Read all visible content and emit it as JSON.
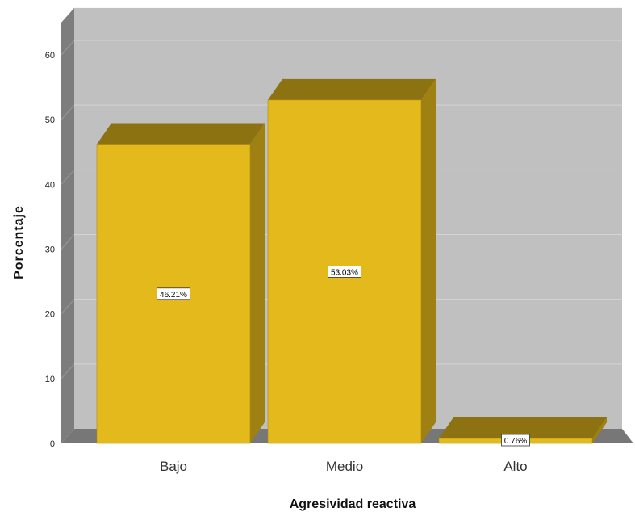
{
  "chart_data": {
    "type": "bar",
    "title": "",
    "xlabel": "Agresividad reactiva",
    "ylabel": "Porcentaje",
    "categories": [
      "Bajo",
      "Medio",
      "Alto"
    ],
    "values": [
      46.21,
      53.03,
      0.76
    ],
    "data_labels": [
      "46.21%",
      "53.03%",
      "0.76%"
    ],
    "yticks": [
      0,
      10,
      20,
      30,
      40,
      50,
      60
    ],
    "ylim": [
      0,
      65
    ],
    "grid": true,
    "legend": "none",
    "colors": {
      "bar_front": "#e3b91c",
      "bar_top": "#8c7210",
      "bar_side": "#9f8013",
      "back_wall": "#c0c0c0",
      "side_wall": "#7d7d7d",
      "floor": "#777777",
      "grid": "#d4d4d4"
    }
  }
}
